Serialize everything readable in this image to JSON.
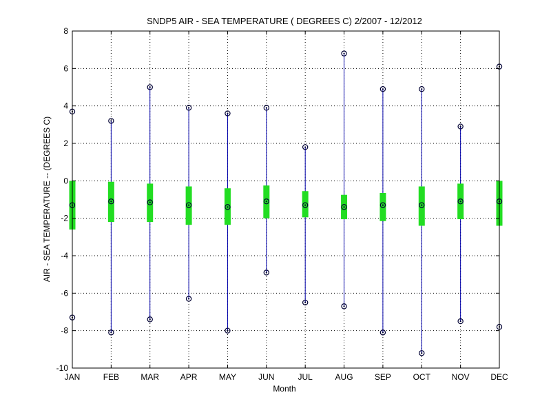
{
  "chart_data": {
    "type": "box",
    "title": "SNDP5  AIR - SEA TEMPERATURE ( DEGREES C) 2/2007 - 12/2012",
    "xlabel": "Month",
    "ylabel": "AIR - SEA TEMPERATURE -- (DEGREES C)",
    "categories": [
      "JAN",
      "FEB",
      "MAR",
      "APR",
      "MAY",
      "JUN",
      "JUL",
      "AUG",
      "SEP",
      "OCT",
      "NOV",
      "DEC"
    ],
    "ylim": [
      -10,
      8
    ],
    "yticks": [
      -10,
      -8,
      -6,
      -4,
      -2,
      0,
      2,
      4,
      6,
      8
    ],
    "grid": true,
    "series": [
      {
        "max": [
          3.7,
          3.2,
          5.0,
          3.9,
          3.6,
          3.9,
          1.8,
          6.8,
          4.9,
          4.9,
          2.9,
          6.1
        ],
        "q3": [
          0.0,
          -0.05,
          -0.15,
          -0.3,
          -0.4,
          -0.25,
          -0.55,
          -0.75,
          -0.65,
          -0.3,
          -0.15,
          0.0
        ],
        "median": [
          -1.3,
          -1.1,
          -1.15,
          -1.3,
          -1.4,
          -1.1,
          -1.3,
          -1.4,
          -1.3,
          -1.3,
          -1.1,
          -1.1
        ],
        "q1": [
          -2.6,
          -2.2,
          -2.2,
          -2.35,
          -2.35,
          -2.0,
          -1.95,
          -2.05,
          -2.15,
          -2.4,
          -2.05,
          -2.4
        ],
        "min": [
          -7.3,
          -8.1,
          -7.4,
          -6.3,
          -8.0,
          -4.9,
          -6.5,
          -6.7,
          -8.1,
          -9.2,
          -7.5,
          -7.8
        ]
      }
    ],
    "colors": {
      "whisker": "#0000aa",
      "box": "#22dd22",
      "marker": "#000033",
      "grid": "#000000"
    }
  }
}
